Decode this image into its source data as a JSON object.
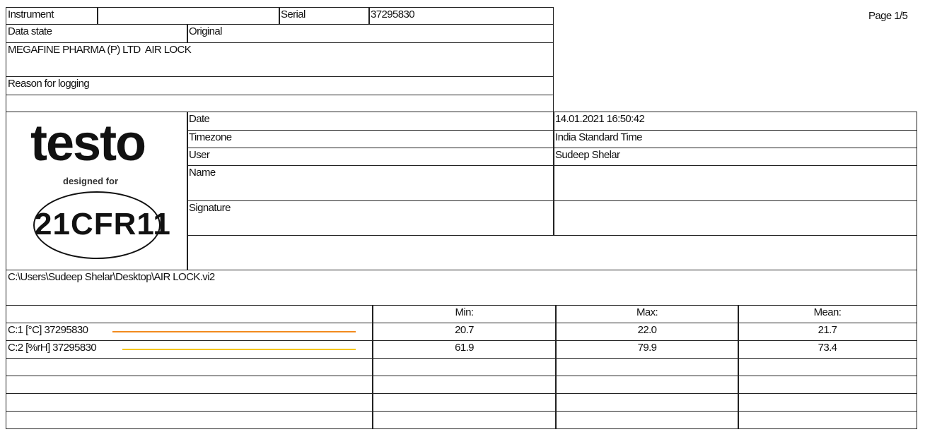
{
  "page": "Page 1/5",
  "header": {
    "instrument_label": "Instrument",
    "instrument_value": "",
    "serial_label": "Serial",
    "serial_value": "37295830",
    "data_state_label": "Data state",
    "data_state_value": "Original",
    "description": "MEGAFINE PHARMA (P) LTD  AIR LOCK",
    "reason_label": "Reason for logging",
    "reason_value": ""
  },
  "logo": {
    "brand": "testo",
    "tagline": "designed for",
    "seal": "21CFR11"
  },
  "info": {
    "date_label": "Date",
    "date_value": "14.01.2021 16:50:42",
    "timezone_label": "Timezone",
    "timezone_value": "India Standard Time",
    "user_label": "User",
    "user_value": "Sudeep Shelar",
    "name_label": "Name",
    "name_value": "",
    "signature_label": "Signature",
    "signature_value": ""
  },
  "file_path": "C:\\Users\\Sudeep Shelar\\Desktop\\AIR LOCK.vi2",
  "stats": {
    "headers": [
      "",
      "Min:",
      "Max:",
      "Mean:"
    ],
    "channels": [
      {
        "label": "C:1 [°C] 37295830",
        "color": "#f28a1e",
        "min": "20.7",
        "max": "22.0",
        "mean": "21.7"
      },
      {
        "label": "C:2 [%rH] 37295830",
        "color": "#f5c518",
        "min": "61.9",
        "max": "79.9",
        "mean": "73.4"
      }
    ]
  }
}
